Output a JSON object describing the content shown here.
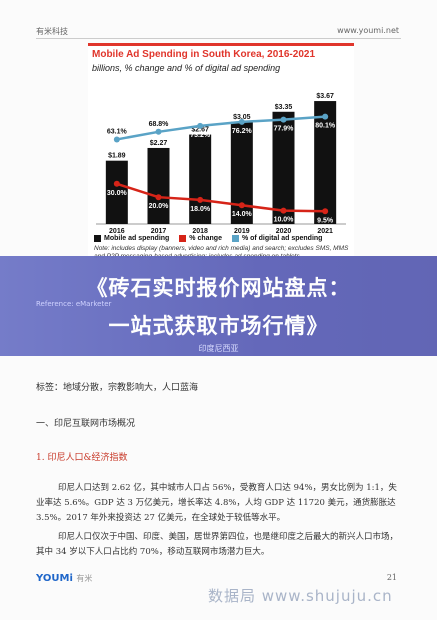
{
  "header": {
    "left": "有米科技",
    "right": "www.youmi.net"
  },
  "chart_data": {
    "type": "bar",
    "title": "Mobile Ad Spending in South Korea, 2016-2021",
    "subtitle": "billions, % change and % of digital ad spending",
    "categories": [
      "2016",
      "2017",
      "2018",
      "2019",
      "2020",
      "2021"
    ],
    "series": [
      {
        "name": "Mobile ad spending",
        "type": "bar",
        "values": [
          1.89,
          2.27,
          2.67,
          3.05,
          3.35,
          3.67
        ],
        "labels": [
          "$1.89",
          "$2.27",
          "$2.67",
          "$3.05",
          "$3.35",
          "$3.67"
        ],
        "color": "#111111"
      },
      {
        "name": "% change",
        "type": "line",
        "values": [
          30.0,
          20.0,
          18.0,
          14.0,
          10.0,
          9.5
        ],
        "labels": [
          "30.0%",
          "20.0%",
          "18.0%",
          "14.0%",
          "10.0%",
          "9.5%"
        ],
        "color": "#d62418"
      },
      {
        "name": "% of digital ad spending",
        "type": "line",
        "values": [
          63.1,
          68.8,
          73.2,
          76.2,
          77.9,
          80.1
        ],
        "labels": [
          "63.1%",
          "68.8%",
          "73.2%",
          "76.2%",
          "77.9%",
          "80.1%"
        ],
        "color": "#5aa3c6"
      }
    ],
    "legend": "bottom",
    "note": "Note: includes display (banners, video and rich media) and search; excludes SMS, MMS and P2P messaging-based advertising; includes ad spending on tablets"
  },
  "banner": {
    "line1": "《砖石实时报价网站盘点：",
    "line2": "一站式获取市场行情》",
    "small": "Reference: eMarketer",
    "sub": "印度尼西亚"
  },
  "tags": "标签：地域分散，宗教影响大，人口蓝海",
  "section_heading": "一、印尼互联网市场概况",
  "sub_heading": "1. 印尼人口&经济指数",
  "paragraphs": [
    "印尼人口达到 2.62 亿，其中城市人口占 56%，受教育人口达 94%，男女比例为 1:1，失业率达 5.6%。GDP 达 3 万亿美元，增长率达 4.8%，人均 GDP 达 11720 美元，通货膨胀达 3.5%。2017 年外来投资达 27 亿美元，在全球处于较低等水平。",
    "印尼人口仅次于中国、印度、美国，居世界第四位，也是继印度之后最大的新兴人口市场，其中 34 岁以下人口占比约 70%，移动互联网市场潜力巨大。"
  ],
  "footer": {
    "logo": "YOUMi",
    "logo_cn": "有米",
    "page_number": "21"
  },
  "watermark": "数据局 www.shujuju.cn"
}
